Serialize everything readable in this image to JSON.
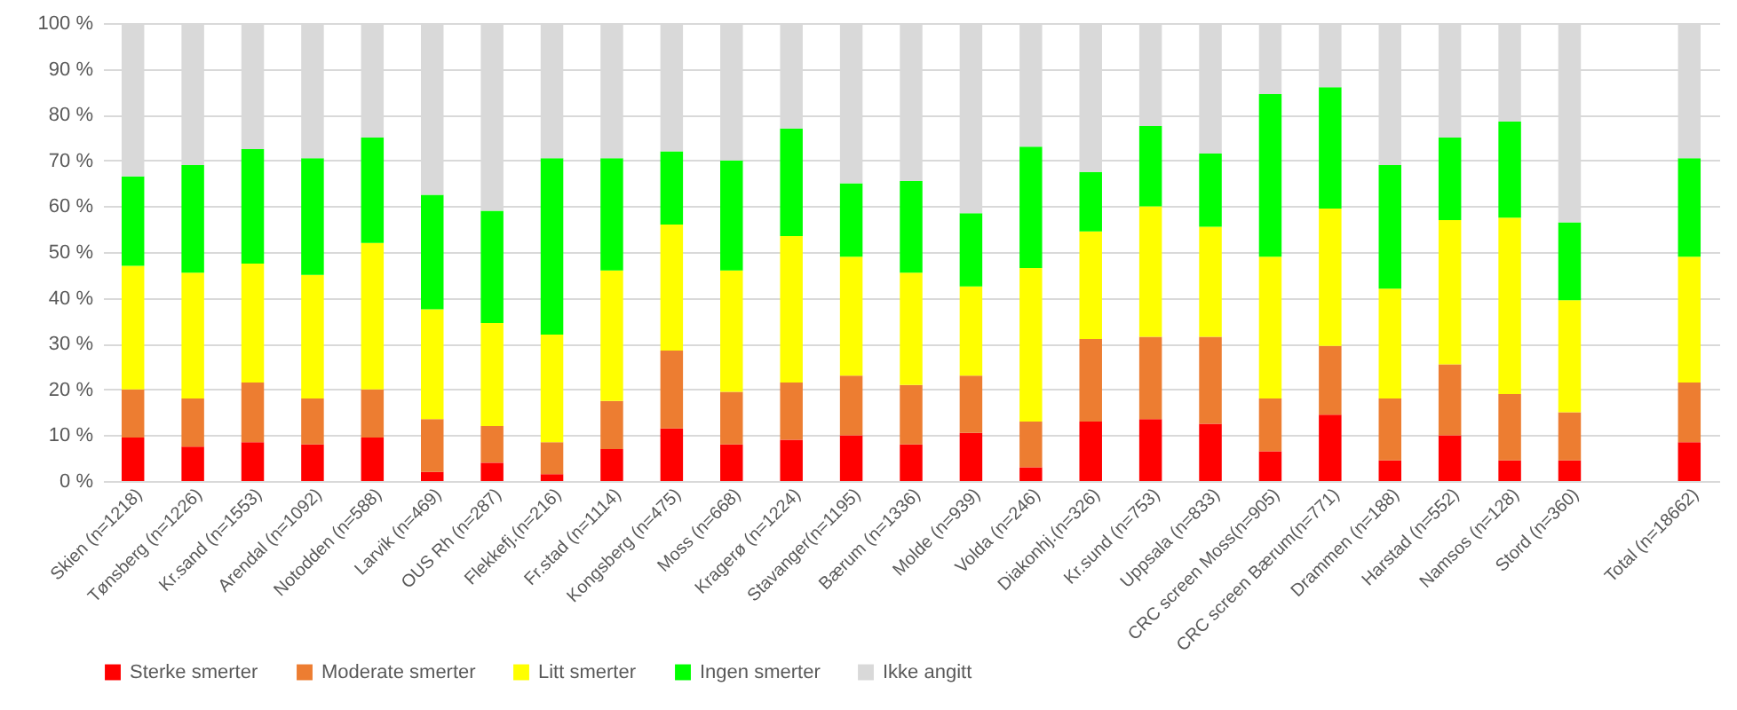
{
  "chart_data": {
    "type": "bar",
    "stacked": true,
    "categories": [
      "Skien (n=1218)",
      "Tønsberg (n=1226)",
      "Kr.sand (n=1553)",
      "Arendal (n=1092)",
      "Notodden (n=588)",
      "Larvik (n=469)",
      "OUS Rh (n=287)",
      "Flekkefj.(n=216)",
      "Fr.stad (n=1114)",
      "Kongsberg (n=475)",
      "Moss (n=668)",
      "Kragerø (n=1224)",
      "Stavanger(n=1195)",
      "Bærum (n=1336)",
      "Molde (n=939)",
      "Volda (n=246)",
      "Diakonhj.(n=326)",
      "Kr.sund (n=753)",
      "Uppsala (n=833)",
      "CRC screen Moss(n=905)",
      "CRC screen Bærum(n=771)",
      "Drammen (n=188)",
      "Harstad (n=552)",
      "Namsos (n=128)",
      "Stord (n=360)",
      null,
      "Total (n=18662)"
    ],
    "series": [
      {
        "name": "Sterke smerter",
        "color": "#ff0000",
        "values": [
          9.5,
          7.5,
          8.5,
          8,
          9.5,
          2,
          4,
          1.5,
          7,
          11.5,
          8,
          9,
          10,
          8,
          10.5,
          3,
          13,
          13.5,
          12.5,
          6.5,
          14.5,
          4.5,
          10,
          4.5,
          4.5,
          null,
          8.5
        ]
      },
      {
        "name": "Moderate smerter",
        "color": "#ed7d31",
        "values": [
          10.5,
          10.5,
          13,
          10,
          10.5,
          11.5,
          8,
          7,
          10.5,
          17,
          11.5,
          12.5,
          13,
          13,
          12.5,
          10,
          18,
          18,
          19,
          11.5,
          15,
          13.5,
          15.5,
          14.5,
          10.5,
          null,
          13
        ]
      },
      {
        "name": "Litt smerter",
        "color": "#ffff00",
        "values": [
          27,
          27.5,
          26,
          27,
          32,
          24,
          22.5,
          23.5,
          28.5,
          27.5,
          26.5,
          32,
          26,
          24.5,
          19.5,
          33.5,
          23.5,
          28.5,
          24,
          31,
          30,
          24,
          31.5,
          38.5,
          24.5,
          null,
          27.5
        ]
      },
      {
        "name": "Ingen smerter",
        "color": "#00ff00",
        "values": [
          19.5,
          23.5,
          25,
          25.5,
          23,
          25,
          24.5,
          38.5,
          24.5,
          16,
          24,
          23.5,
          16,
          20,
          16,
          26.5,
          13,
          17.5,
          16,
          35.5,
          26.5,
          27,
          18,
          21,
          17,
          null,
          21.5
        ]
      },
      {
        "name": "Ikke angitt",
        "color": "#d9d9d9",
        "values": [
          33.5,
          31,
          27.5,
          29.5,
          25,
          37.5,
          41,
          29.5,
          29.5,
          28,
          30,
          23,
          35,
          34.5,
          41.5,
          27,
          32.5,
          22.5,
          28.5,
          15.5,
          14,
          31,
          25,
          21.5,
          43.5,
          null,
          29.5
        ]
      }
    ],
    "ylim": [
      0,
      100
    ],
    "yticks": [
      {
        "value": 0,
        "label": "0 %"
      },
      {
        "value": 10,
        "label": "10 %"
      },
      {
        "value": 20,
        "label": "20 %"
      },
      {
        "value": 30,
        "label": "30 %"
      },
      {
        "value": 40,
        "label": "40 %"
      },
      {
        "value": 50,
        "label": "50 %"
      },
      {
        "value": 60,
        "label": "60 %"
      },
      {
        "value": 70,
        "label": "70 %"
      },
      {
        "value": 80,
        "label": "80 %"
      },
      {
        "value": 90,
        "label": "90 %"
      },
      {
        "value": 100,
        "label": "100 %"
      }
    ],
    "grid": "y",
    "legend": "bottom"
  }
}
